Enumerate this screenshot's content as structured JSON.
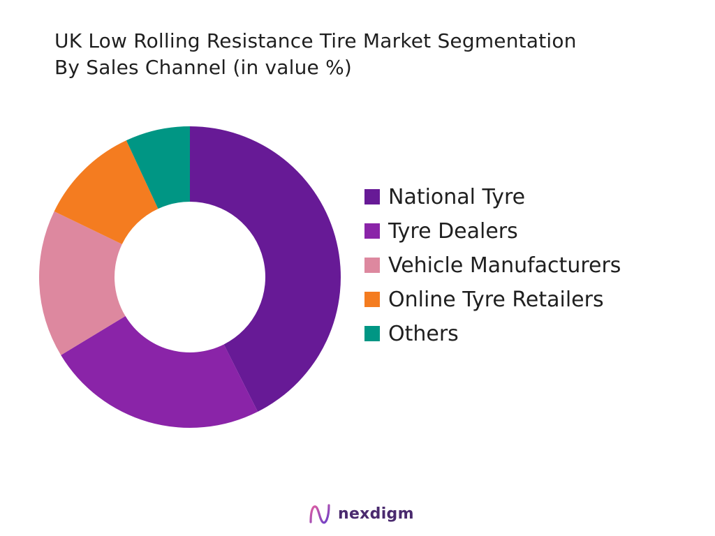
{
  "title": {
    "line1": "UK Low Rolling Resistance Tire Market Segmentation",
    "line2": "By Sales Channel (in value %)"
  },
  "chart_data": {
    "type": "pie",
    "variant": "donut",
    "categories": [
      "National Tyre",
      "Tyre Dealers",
      "Vehicle Manufacturers",
      "Online Tyre Retailers",
      "Others"
    ],
    "values": [
      43,
      24,
      16,
      11,
      7
    ],
    "unit": "%",
    "colors": [
      "#671a96",
      "#8a24a8",
      "#dd889f",
      "#f47c20",
      "#009684"
    ],
    "legend_position": "right"
  },
  "brand": {
    "name": "nexdigm",
    "logo_icon": "nexdigm-logo-icon"
  }
}
